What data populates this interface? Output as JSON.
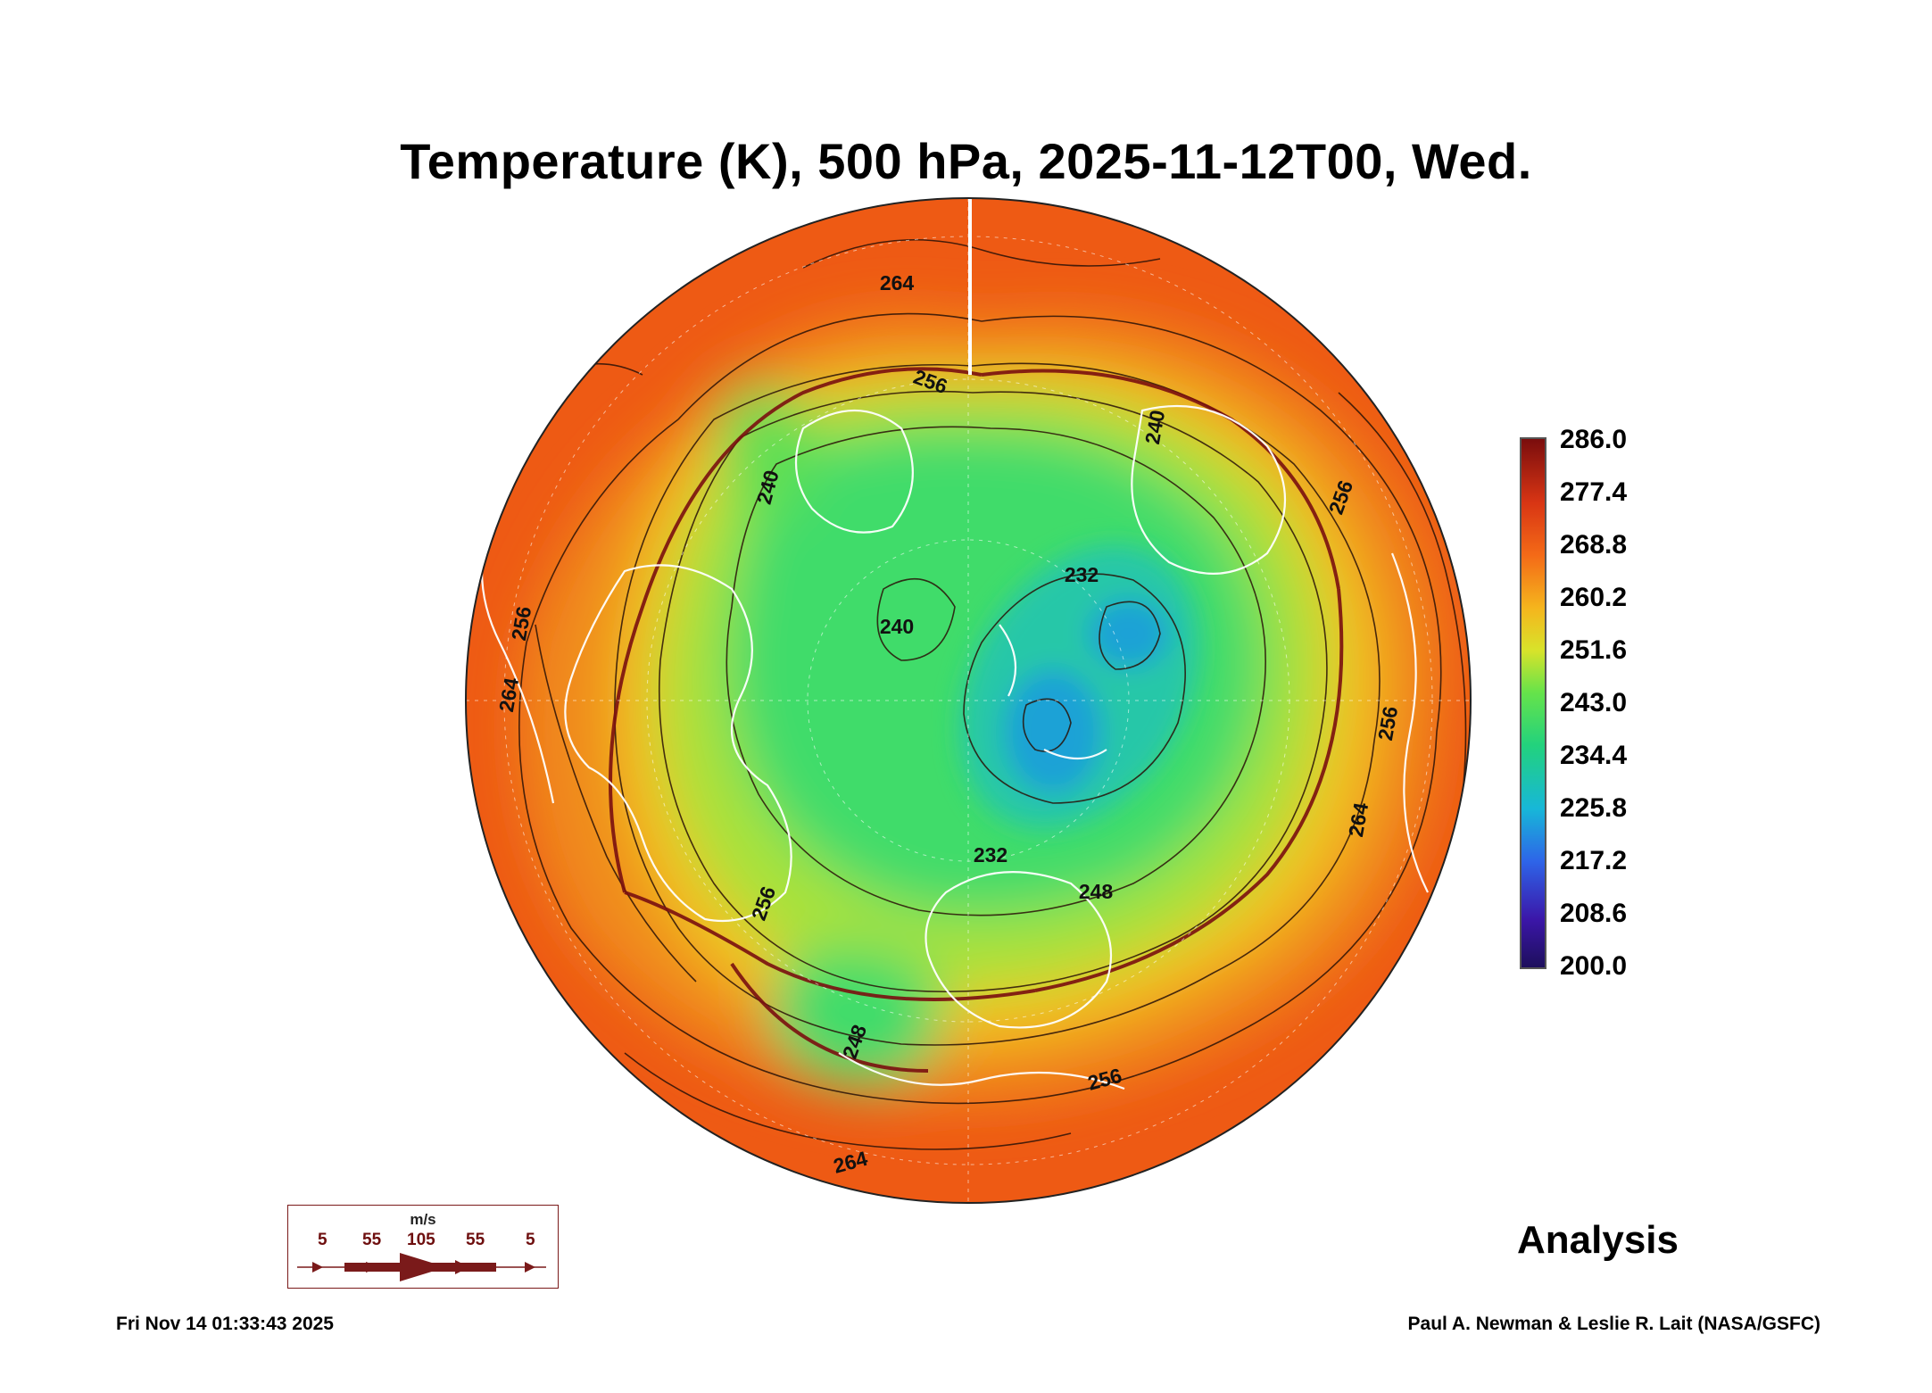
{
  "title": "Temperature (K), 500 hPa, 2025-11-12T00, Wed.",
  "colorbar": {
    "labels": [
      "286.0",
      "277.4",
      "268.8",
      "260.2",
      "251.6",
      "243.0",
      "234.4",
      "225.8",
      "217.2",
      "208.6",
      "200.0"
    ]
  },
  "contour_labels": [
    "264",
    "256",
    "240",
    "232",
    "240",
    "256",
    "248",
    "256",
    "264",
    "256",
    "248",
    "232",
    "256",
    "264",
    "264",
    "240",
    "256"
  ],
  "wind_legend": {
    "unit": "m/s",
    "values": [
      "5",
      "55",
      "105",
      "55",
      "5"
    ]
  },
  "analysis_label": "Analysis",
  "timestamp": "Fri Nov 14 01:33:43 2025",
  "credit": "Paul A. Newman & Leslie R. Lait (NASA/GSFC)",
  "colors": {
    "outer": "#ee5a14",
    "warm": "#f08a1c",
    "mid": "#f2c321",
    "cool": "#a8e23a",
    "green": "#3fdc6a",
    "cyan": "#28c7a8",
    "blue": "#1aa2d6",
    "contour": "#2a1208",
    "stream": "#7a1010",
    "coast": "#ffffff"
  }
}
